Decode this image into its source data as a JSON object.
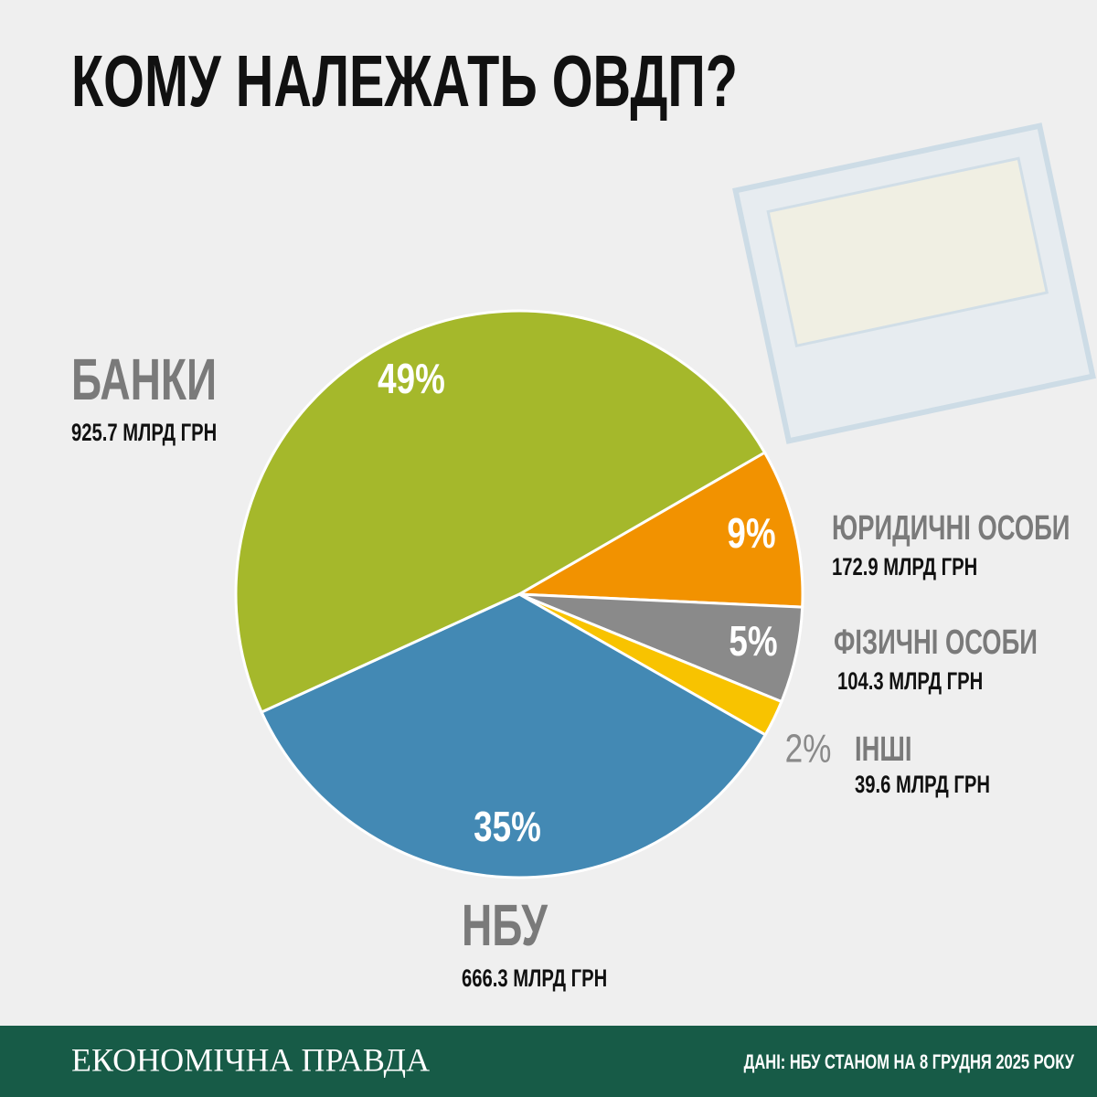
{
  "chart_data": {
    "type": "pie",
    "title": "КОМУ НАЛЕЖАТЬ ОВДП?",
    "categories": [
      "ЮРИДИЧНІ ОСОБИ",
      "ФІЗИЧНІ ОСОБИ",
      "ІНШІ",
      "НБУ",
      "БАНКИ"
    ],
    "values": [
      172.9,
      104.3,
      39.6,
      666.3,
      925.7
    ],
    "value_labels": [
      "172.9 МЛРД ГРН",
      "104.3 МЛРД ГРН",
      "39.6 МЛРД ГРН",
      "666.3 МЛРД ГРН",
      "925.7 МЛРД ГРН"
    ],
    "percents": [
      9,
      5,
      2,
      35,
      49
    ],
    "percent_labels": [
      "9%",
      "5%",
      "2%",
      "35%",
      "49%"
    ],
    "colors": [
      "#f29200",
      "#8a8a8a",
      "#f8c300",
      "#4389b4",
      "#a5b82b"
    ],
    "brand": "ЕКОНОМІЧНА ПРАВДА",
    "source": "ДАНІ: НБУ СТАНОМ НА 8 ГРУДНЯ 2025 РОКУ"
  }
}
